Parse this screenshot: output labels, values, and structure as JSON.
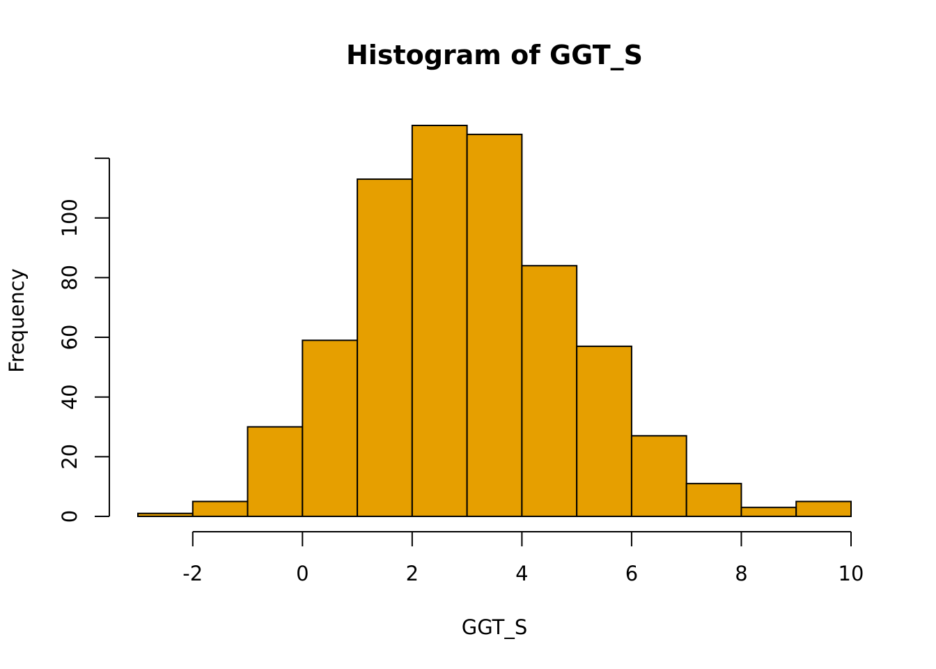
{
  "chart_data": {
    "type": "bar",
    "subtype": "histogram",
    "title": "Histogram of GGT_S",
    "xlabel": "GGT_S",
    "ylabel": "Frequency",
    "bins": [
      {
        "from": -3,
        "to": -2,
        "count": 1
      },
      {
        "from": -2,
        "to": -1,
        "count": 5
      },
      {
        "from": -1,
        "to": 0,
        "count": 30
      },
      {
        "from": 0,
        "to": 1,
        "count": 59
      },
      {
        "from": 1,
        "to": 2,
        "count": 113
      },
      {
        "from": 2,
        "to": 3,
        "count": 131
      },
      {
        "from": 3,
        "to": 4,
        "count": 128
      },
      {
        "from": 4,
        "to": 5,
        "count": 84
      },
      {
        "from": 5,
        "to": 6,
        "count": 57
      },
      {
        "from": 6,
        "to": 7,
        "count": 27
      },
      {
        "from": 7,
        "to": 8,
        "count": 11
      },
      {
        "from": 8,
        "to": 9,
        "count": 3
      },
      {
        "from": 9,
        "to": 10,
        "count": 5
      }
    ],
    "xlim": [
      -3,
      10
    ],
    "ylim": [
      0,
      131
    ],
    "x_ticks": [
      -2,
      0,
      2,
      4,
      6,
      8,
      10
    ],
    "x_tick_labels": [
      "-2",
      "0",
      "2",
      "4",
      "6",
      "8",
      "10"
    ],
    "y_ticks": [
      0,
      20,
      40,
      60,
      80,
      100,
      120
    ],
    "y_tick_labels": [
      "0",
      "20",
      "40",
      "60",
      "80",
      "100",
      ""
    ],
    "bar_color": "#E69F00",
    "edge_color": "#000000",
    "grid": false,
    "legend": "none"
  }
}
